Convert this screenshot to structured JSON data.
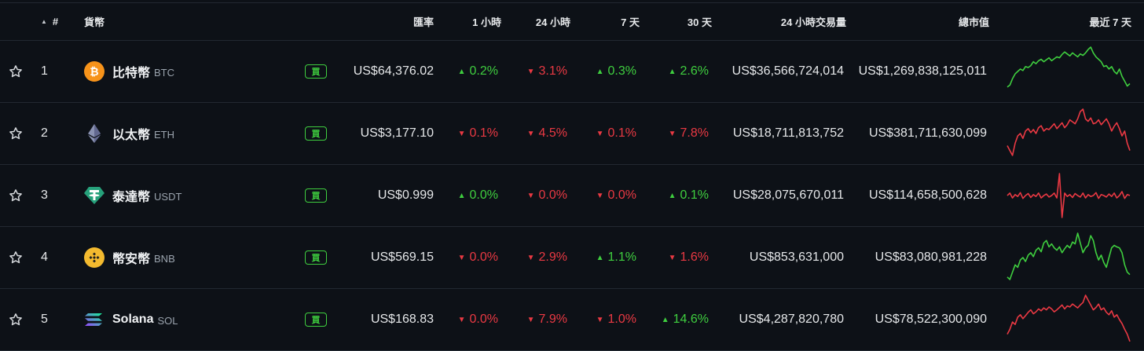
{
  "header": {
    "rank": "#",
    "coin": "貨幣",
    "price": "匯率",
    "h1": "1 小時",
    "h24": "24 小時",
    "d7": "7 天",
    "d30": "30 天",
    "volume": "24 小時交易量",
    "market_cap": "總市值",
    "last7": "最近 7 天"
  },
  "colors": {
    "up": "#3fcf3f",
    "down": "#ea3943"
  },
  "rows": [
    {
      "rank": "1",
      "name": "比特幣",
      "symbol": "BTC",
      "icon": "bitcoin-icon",
      "buy": "買",
      "price": "US$64,376.02",
      "h1": {
        "value": "0.2%",
        "dir": "up"
      },
      "h24": {
        "value": "3.1%",
        "dir": "down"
      },
      "d7": {
        "value": "0.3%",
        "dir": "up"
      },
      "d30": {
        "value": "2.6%",
        "dir": "up"
      },
      "volume": "US$36,566,724,014",
      "market_cap": "US$1,269,838,125,011",
      "trend": "up",
      "spark": [
        0.18,
        0.22,
        0.35,
        0.45,
        0.5,
        0.55,
        0.52,
        0.6,
        0.58,
        0.62,
        0.7,
        0.66,
        0.72,
        0.75,
        0.7,
        0.74,
        0.78,
        0.72,
        0.76,
        0.8,
        0.78,
        0.85,
        0.9,
        0.86,
        0.82,
        0.88,
        0.84,
        0.8,
        0.86,
        0.83,
        0.88,
        0.95,
        1.0,
        0.88,
        0.8,
        0.75,
        0.7,
        0.6,
        0.62,
        0.55,
        0.6,
        0.5,
        0.45,
        0.55,
        0.4,
        0.3,
        0.2,
        0.25
      ]
    },
    {
      "rank": "2",
      "name": "以太幣",
      "symbol": "ETH",
      "icon": "ethereum-icon",
      "buy": "買",
      "price": "US$3,177.10",
      "h1": {
        "value": "0.1%",
        "dir": "down"
      },
      "h24": {
        "value": "4.5%",
        "dir": "down"
      },
      "d7": {
        "value": "0.1%",
        "dir": "down"
      },
      "d30": {
        "value": "7.8%",
        "dir": "down"
      },
      "volume": "US$18,711,813,752",
      "market_cap": "US$381,711,630,099",
      "trend": "down",
      "spark": [
        0.25,
        0.15,
        0.05,
        0.3,
        0.45,
        0.5,
        0.4,
        0.55,
        0.6,
        0.52,
        0.58,
        0.5,
        0.62,
        0.66,
        0.55,
        0.6,
        0.58,
        0.64,
        0.7,
        0.6,
        0.66,
        0.72,
        0.62,
        0.68,
        0.78,
        0.74,
        0.7,
        0.8,
        0.95,
        1.0,
        0.8,
        0.75,
        0.82,
        0.7,
        0.72,
        0.78,
        0.68,
        0.74,
        0.8,
        0.7,
        0.55,
        0.65,
        0.72,
        0.6,
        0.45,
        0.55,
        0.3,
        0.15
      ]
    },
    {
      "rank": "3",
      "name": "泰達幣",
      "symbol": "USDT",
      "icon": "tether-icon",
      "buy": "買",
      "price": "US$0.999",
      "h1": {
        "value": "0.0%",
        "dir": "up"
      },
      "h24": {
        "value": "0.0%",
        "dir": "down"
      },
      "d7": {
        "value": "0.0%",
        "dir": "down"
      },
      "d30": {
        "value": "0.1%",
        "dir": "up"
      },
      "volume": "US$28,075,670,011",
      "market_cap": "US$114,658,500,628",
      "trend": "down",
      "spark": [
        0.5,
        0.55,
        0.45,
        0.52,
        0.48,
        0.56,
        0.44,
        0.5,
        0.54,
        0.46,
        0.52,
        0.48,
        0.55,
        0.45,
        0.5,
        0.53,
        0.47,
        0.5,
        0.55,
        0.45,
        0.95,
        0.05,
        0.55,
        0.48,
        0.52,
        0.46,
        0.54,
        0.5,
        0.47,
        0.55,
        0.45,
        0.52,
        0.48,
        0.5,
        0.56,
        0.44,
        0.52,
        0.5,
        0.47,
        0.53,
        0.48,
        0.55,
        0.45,
        0.5,
        0.58,
        0.44,
        0.52,
        0.5
      ]
    },
    {
      "rank": "4",
      "name": "幣安幣",
      "symbol": "BNB",
      "icon": "binance-icon",
      "buy": "買",
      "price": "US$569.15",
      "h1": {
        "value": "0.0%",
        "dir": "down"
      },
      "h24": {
        "value": "2.9%",
        "dir": "down"
      },
      "d7": {
        "value": "1.1%",
        "dir": "up"
      },
      "d30": {
        "value": "1.6%",
        "dir": "down"
      },
      "volume": "US$853,631,000",
      "market_cap": "US$83,080,981,228",
      "trend": "up",
      "spark": [
        0.1,
        0.05,
        0.2,
        0.35,
        0.3,
        0.45,
        0.5,
        0.42,
        0.55,
        0.6,
        0.52,
        0.65,
        0.7,
        0.62,
        0.8,
        0.85,
        0.72,
        0.78,
        0.7,
        0.65,
        0.72,
        0.6,
        0.68,
        0.75,
        0.7,
        0.82,
        0.78,
        1.0,
        0.8,
        0.6,
        0.7,
        0.75,
        0.95,
        0.85,
        0.6,
        0.45,
        0.55,
        0.4,
        0.3,
        0.5,
        0.7,
        0.75,
        0.72,
        0.7,
        0.6,
        0.35,
        0.2,
        0.15
      ]
    },
    {
      "rank": "5",
      "name": "Solana",
      "symbol": "SOL",
      "icon": "solana-icon",
      "buy": "買",
      "price": "US$168.83",
      "h1": {
        "value": "0.0%",
        "dir": "down"
      },
      "h24": {
        "value": "7.9%",
        "dir": "down"
      },
      "d7": {
        "value": "1.0%",
        "dir": "down"
      },
      "d30": {
        "value": "14.6%",
        "dir": "up"
      },
      "volume": "US$4,287,820,780",
      "market_cap": "US$78,522,300,090",
      "trend": "down",
      "spark": [
        0.2,
        0.3,
        0.45,
        0.4,
        0.55,
        0.6,
        0.52,
        0.58,
        0.65,
        0.7,
        0.62,
        0.66,
        0.72,
        0.68,
        0.74,
        0.7,
        0.76,
        0.72,
        0.66,
        0.7,
        0.75,
        0.8,
        0.72,
        0.78,
        0.76,
        0.82,
        0.78,
        0.74,
        0.8,
        0.85,
        1.0,
        0.9,
        0.8,
        0.7,
        0.75,
        0.82,
        0.7,
        0.74,
        0.65,
        0.6,
        0.68,
        0.55,
        0.6,
        0.5,
        0.42,
        0.3,
        0.2,
        0.05
      ]
    }
  ]
}
